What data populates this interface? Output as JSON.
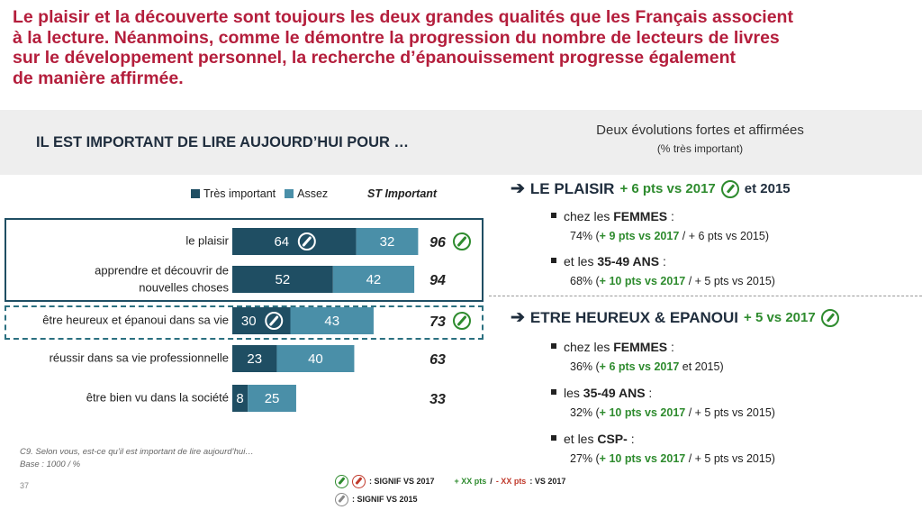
{
  "headline": [
    "Le plaisir et la découverte sont toujours les deux grandes qualités que les Français associent",
    "à la lecture. Néanmoins, comme le démontre la progression du nombre de lecteurs de livres",
    "sur le développement personnel, la recherche d’épanouissement progresse également",
    "de manière affirmée."
  ],
  "chart_title": "IL EST IMPORTANT DE LIRE AUJOURD’HUI POUR …",
  "colors": {
    "tres": "#1f4e63",
    "assez": "#4a8fa8",
    "headline": "#b41e3c",
    "signif": "#2e8b2e"
  },
  "chart_data": {
    "type": "bar",
    "orientation": "horizontal",
    "stacked": true,
    "legend": [
      "Très important",
      "Assez"
    ],
    "st_label": "ST Important",
    "categories": [
      [
        "le plaisir"
      ],
      [
        "apprendre et découvrir de",
        "nouvelles choses"
      ],
      [
        "être heureux et épanoui dans sa vie"
      ],
      [
        "réussir dans sa vie professionnelle"
      ],
      [
        "être bien vu dans la société"
      ]
    ],
    "series": [
      {
        "name": "Très important",
        "values": [
          64,
          52,
          30,
          23,
          8
        ]
      },
      {
        "name": "Assez",
        "values": [
          32,
          42,
          43,
          40,
          25
        ]
      }
    ],
    "st_important": [
      96,
      94,
      73,
      63,
      33
    ],
    "signif_bar": [
      true,
      false,
      true,
      false,
      false
    ],
    "signif_total": [
      true,
      false,
      true,
      false,
      false
    ]
  },
  "right": {
    "title": "Deux évolutions fortes et affirmées",
    "subtitle": "(% très important)",
    "sections": [
      {
        "head": "LE PLAISIR",
        "head_green": "+ 6 pts vs 2017",
        "head_trail": "et 2015",
        "items": [
          {
            "label_pre": "chez les ",
            "label_bold": "FEMMES",
            "label_post": " :",
            "value": "74%",
            "green": "+ 9 pts vs 2017",
            "rest": " / + 6 pts vs 2015)"
          },
          {
            "label_pre": "et les ",
            "label_bold": "35-49 ANS",
            "label_post": " :",
            "value": "68%",
            "green": "+ 10 pts vs 2017",
            "rest": " / + 5 pts vs 2015)"
          }
        ]
      },
      {
        "head": "ETRE HEUREUX & EPANOUI",
        "head_green": "+ 5 vs 2017",
        "head_trail": "",
        "items": [
          {
            "label_pre": "chez les ",
            "label_bold": "FEMMES",
            "label_post": " :",
            "value": "36%",
            "green": "+ 6 pts vs 2017",
            "rest": " et 2015)"
          },
          {
            "label_pre": "les ",
            "label_bold": "35-49 ANS",
            "label_post": " :",
            "value": "32%",
            "green": "+ 10 pts vs 2017",
            "rest": " / + 5 pts vs 2015)"
          },
          {
            "label_pre": "et les ",
            "label_bold": "CSP-",
            "label_post": " :",
            "value": "27%",
            "green": "+ 10 pts vs 2017",
            "rest": " / + 5 pts vs 2015)"
          }
        ]
      }
    ]
  },
  "footnote": {
    "question": "C9. Selon vous, est-ce qu’il est important de lire aujourd’hui…",
    "base": "Base : 1000 / %",
    "page": "37"
  },
  "footer_legend": {
    "signif_2017": ": SIGNIF VS 2017",
    "plus": "+ XX pts",
    "sep": " / ",
    "minus": "- XX pts",
    "vs2017": " : VS 2017",
    "signif_2015": ": SIGNIF VS 2015"
  }
}
